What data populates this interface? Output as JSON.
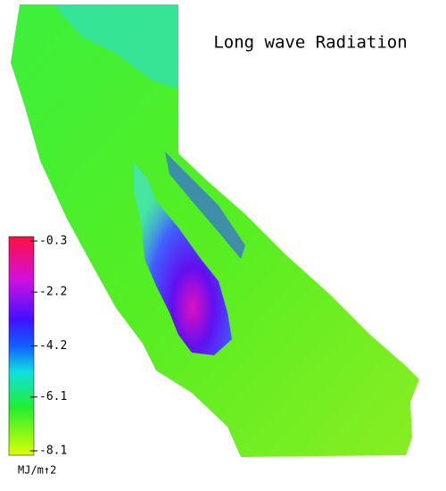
{
  "title": "Long wave Radiation",
  "colorbar": {
    "lim": [
      -8.1,
      -0.3
    ],
    "ticks": [
      -0.3,
      -2.2,
      -4.2,
      -6.1,
      -8.1
    ],
    "unit": "MJ/m↑2"
  }
}
